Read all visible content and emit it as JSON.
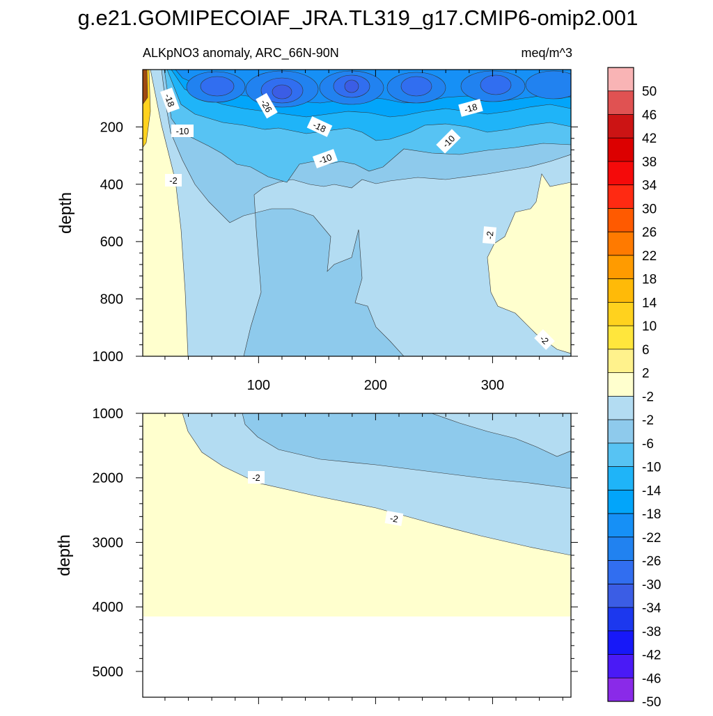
{
  "title": "g.e21.GOMIPECOIAF_JRA.TL319_g17.CMIP6-omip2.001",
  "panel_left_title": "ALKpNO3 anomaly, ARC_66N-90N",
  "panel_right_title": "meq/m^3",
  "chart_data": [
    {
      "type": "heatmap",
      "panel": "upper",
      "ylabel": "depth",
      "xlim": [
        1,
        367
      ],
      "ylim": [
        1000,
        0
      ],
      "xticks": [
        100,
        200,
        300
      ],
      "yticks": [
        200,
        400,
        600,
        800,
        1000
      ],
      "contour_labels": [
        "-18",
        "-26",
        "-18",
        "-18",
        "-10",
        "-10",
        "-10",
        "-2",
        "-2",
        "-2"
      ]
    },
    {
      "type": "heatmap",
      "panel": "lower",
      "ylabel": "depth",
      "xlim": [
        1,
        367
      ],
      "ylim": [
        5400,
        1000
      ],
      "yticks": [
        1000,
        2000,
        3000,
        4000,
        5000
      ],
      "data_bottom_depth": 4120,
      "contour_labels": [
        "-2",
        "-2"
      ]
    }
  ],
  "colorbar": {
    "labels": [
      "50",
      "46",
      "42",
      "38",
      "34",
      "30",
      "26",
      "22",
      "18",
      "14",
      "10",
      "6",
      "2",
      "-2",
      "-2",
      "-6",
      "-10",
      "-14",
      "-18",
      "-22",
      "-26",
      "-30",
      "-34",
      "-38",
      "-42",
      "-46",
      "-50"
    ],
    "colors": [
      "#f9b4b5",
      "#e05252",
      "#cc1414",
      "#dc0000",
      "#f50a0a",
      "#ff2a12",
      "#ff5a00",
      "#ff7a00",
      "#ff9b00",
      "#ffba08",
      "#ffd21e",
      "#ffe63c",
      "#fff28c",
      "#ffffce",
      "#b3dcf2",
      "#8ecaec",
      "#57c3f3",
      "#1fb4f8",
      "#02a5fa",
      "#1690f6",
      "#2182f0",
      "#316ef0",
      "#3b5de5",
      "#1c38ee",
      "#1718f8",
      "#4a1af6",
      "#8a2ae8"
    ]
  }
}
